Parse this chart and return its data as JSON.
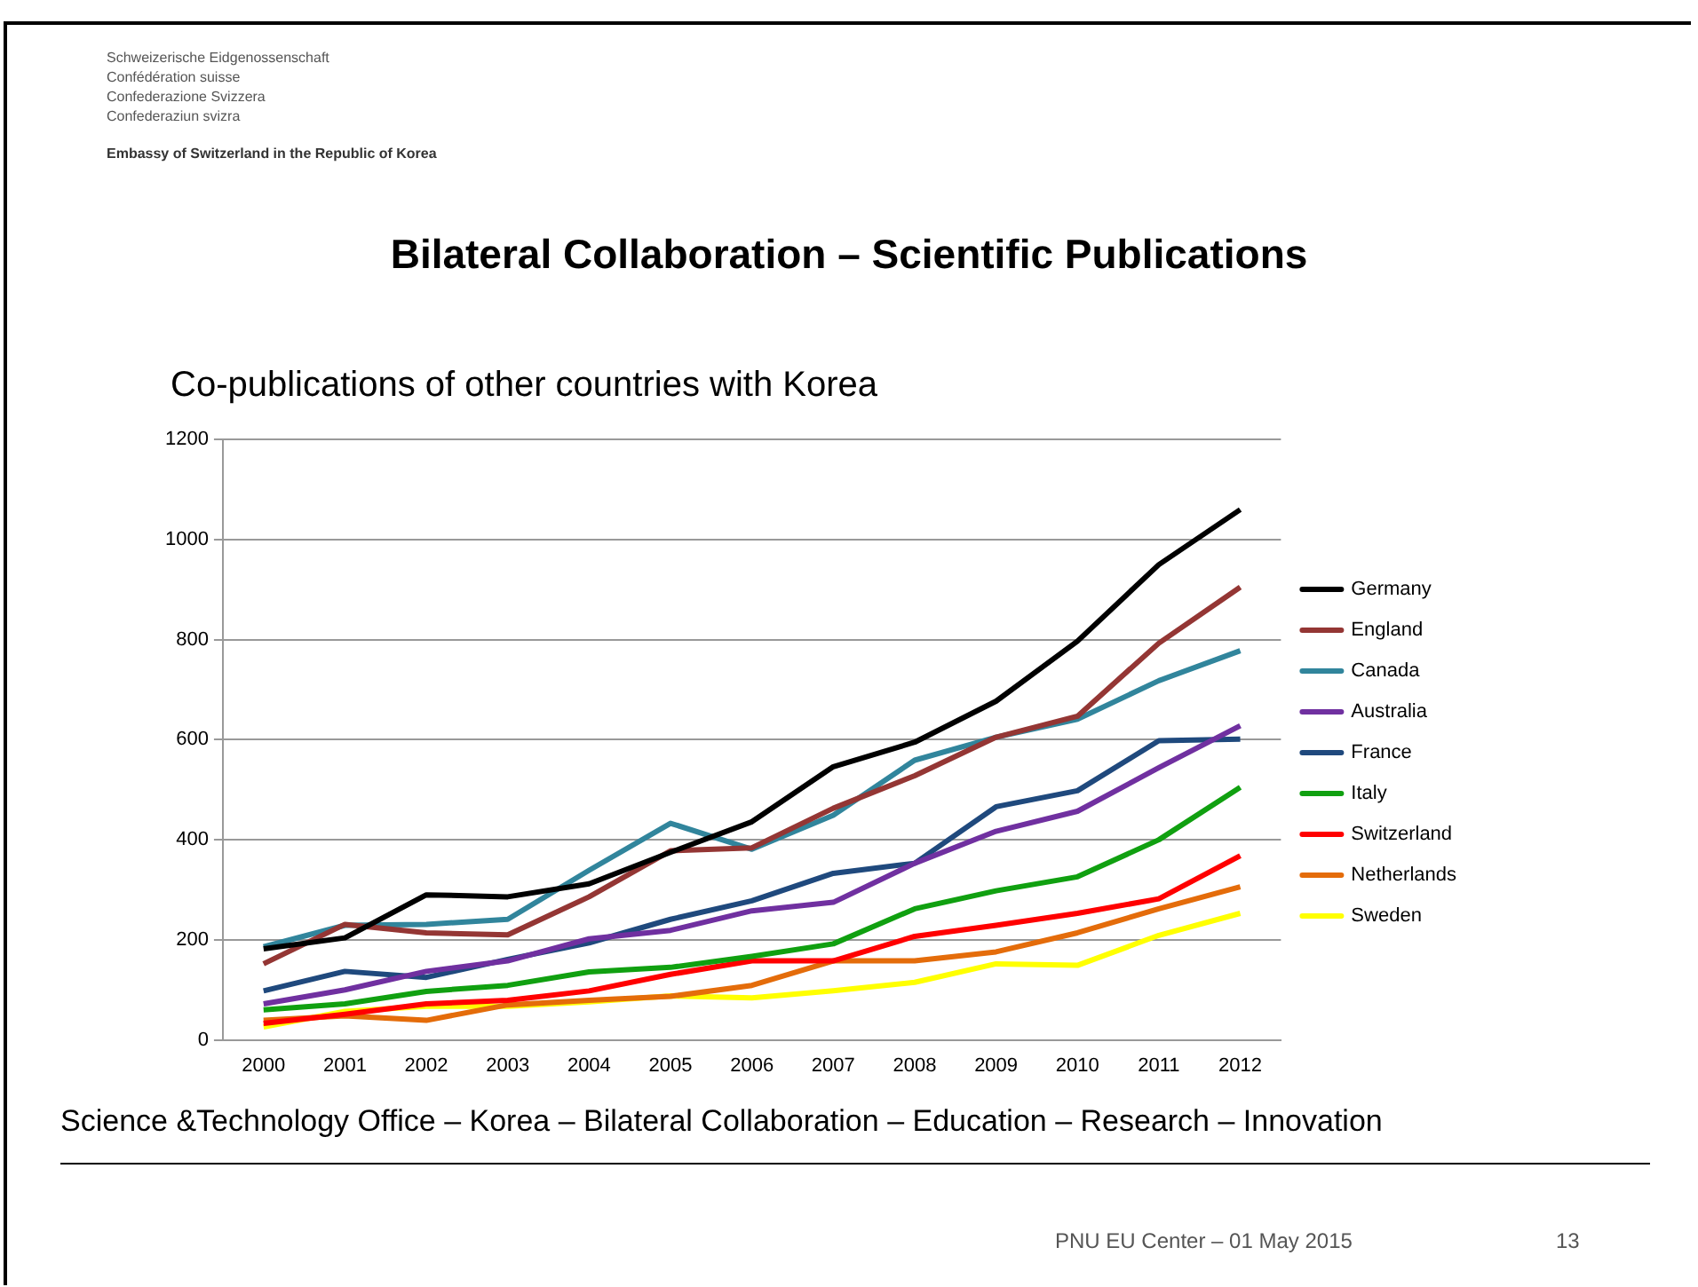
{
  "chart_data": {
    "type": "line",
    "title": "Bilateral Collaboration – Scientific Publications",
    "subtitle": "Co-publications of other countries with Korea",
    "annotations": [
      "Schweizerische Eidgenossenschaft",
      "Confédération suisse",
      "Confederazione Svizzera",
      "Confederaziun svizra",
      "Embassy of Switzerland in the Republic of Korea",
      "Science &Technology Office – Korea  – Bilateral Collaboration – Education – Research – Innovation",
      "PNU EU Center – 01 May 2015",
      "13"
    ],
    "categories": [
      "2000",
      "2001",
      "2002",
      "2003",
      "2004",
      "2005",
      "2006",
      "2007",
      "2008",
      "2009",
      "2010",
      "2011",
      "2012"
    ],
    "series": [
      {
        "name": "Germany",
        "color": "#000000",
        "values": [
          182,
          204,
          290,
          286,
          312,
          375,
          436,
          546,
          595,
          677,
          797,
          950,
          1060
        ]
      },
      {
        "name": "England",
        "color": "#943634",
        "values": [
          152,
          231,
          214,
          210,
          286,
          378,
          384,
          463,
          528,
          605,
          647,
          793,
          905
        ]
      },
      {
        "name": "Canada",
        "color": "#31859c",
        "values": [
          186,
          229,
          231,
          241,
          339,
          433,
          381,
          449,
          559,
          605,
          641,
          718,
          778
        ]
      },
      {
        "name": "Australia",
        "color": "#7030a0",
        "values": [
          72,
          100,
          137,
          158,
          202,
          219,
          258,
          275,
          353,
          417,
          457,
          544,
          628
        ]
      },
      {
        "name": "France",
        "color": "#1f497d",
        "values": [
          98,
          137,
          125,
          161,
          194,
          241,
          278,
          333,
          353,
          466,
          498,
          598,
          601
        ]
      },
      {
        "name": "Italy",
        "color": "#10a010",
        "values": [
          60,
          72,
          97,
          109,
          136,
          145,
          167,
          192,
          262,
          298,
          326,
          400,
          505
        ]
      },
      {
        "name": "Switzerland",
        "color": "#ff0000",
        "values": [
          33,
          51,
          72,
          79,
          98,
          131,
          158,
          158,
          207,
          229,
          253,
          282,
          368
        ]
      },
      {
        "name": "Netherlands",
        "color": "#e46c0a",
        "values": [
          39,
          48,
          39,
          70,
          79,
          87,
          109,
          158,
          158,
          176,
          214,
          262,
          306
        ]
      },
      {
        "name": "Sweden",
        "color": "#ffff00",
        "values": [
          26,
          57,
          67,
          67,
          76,
          88,
          84,
          98,
          115,
          152,
          149,
          209,
          253
        ]
      }
    ],
    "ylim": [
      0,
      1200
    ],
    "yticks": [
      0,
      200,
      400,
      600,
      800,
      1000,
      1200
    ],
    "grid": "y",
    "legend": "right",
    "marker": "none",
    "line_style": "solid"
  }
}
